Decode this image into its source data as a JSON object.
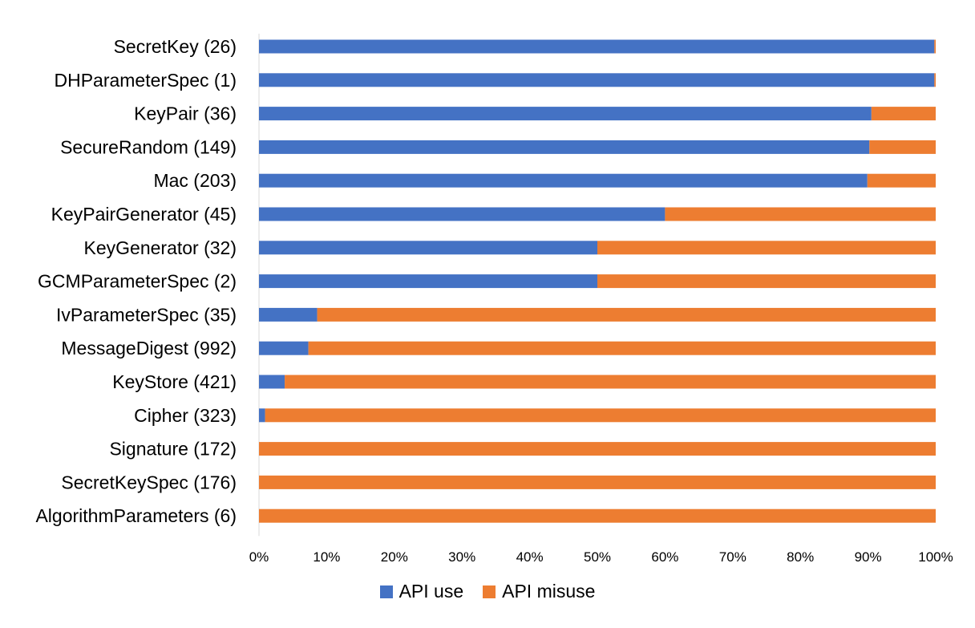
{
  "chart_data": {
    "type": "bar",
    "orientation": "horizontal",
    "stacked": "percent",
    "categories": [
      "SecretKey (26)",
      "DHParameterSpec (1)",
      "KeyPair (36)",
      "SecureRandom (149)",
      "Mac (203)",
      "KeyPairGenerator (45)",
      "KeyGenerator (32)",
      "GCMParameterSpec (2)",
      "IvParameterSpec (35)",
      "MessageDigest (992)",
      "KeyStore (421)",
      "Cipher (323)",
      "Signature (172)",
      "SecretKeySpec (176)",
      "AlgorithmParameters (6)"
    ],
    "series": [
      {
        "name": "API use",
        "color": "#4472C4",
        "values": [
          99.8,
          99.8,
          90.5,
          90.2,
          89.9,
          60.0,
          50.0,
          50.0,
          8.6,
          7.3,
          3.8,
          0.9,
          0,
          0,
          0
        ]
      },
      {
        "name": "API misuse",
        "color": "#ED7D31",
        "values": [
          0.2,
          0.2,
          9.5,
          9.8,
          10.1,
          40.0,
          50.0,
          50.0,
          91.4,
          92.7,
          96.2,
          99.1,
          100,
          100,
          100
        ]
      }
    ],
    "x_ticks": [
      "0%",
      "10%",
      "20%",
      "30%",
      "40%",
      "50%",
      "60%",
      "70%",
      "80%",
      "90%",
      "100%"
    ],
    "xlim": [
      0,
      100
    ],
    "grid": false,
    "legend_position": "bottom",
    "title": "",
    "xlabel": "",
    "ylabel": ""
  }
}
